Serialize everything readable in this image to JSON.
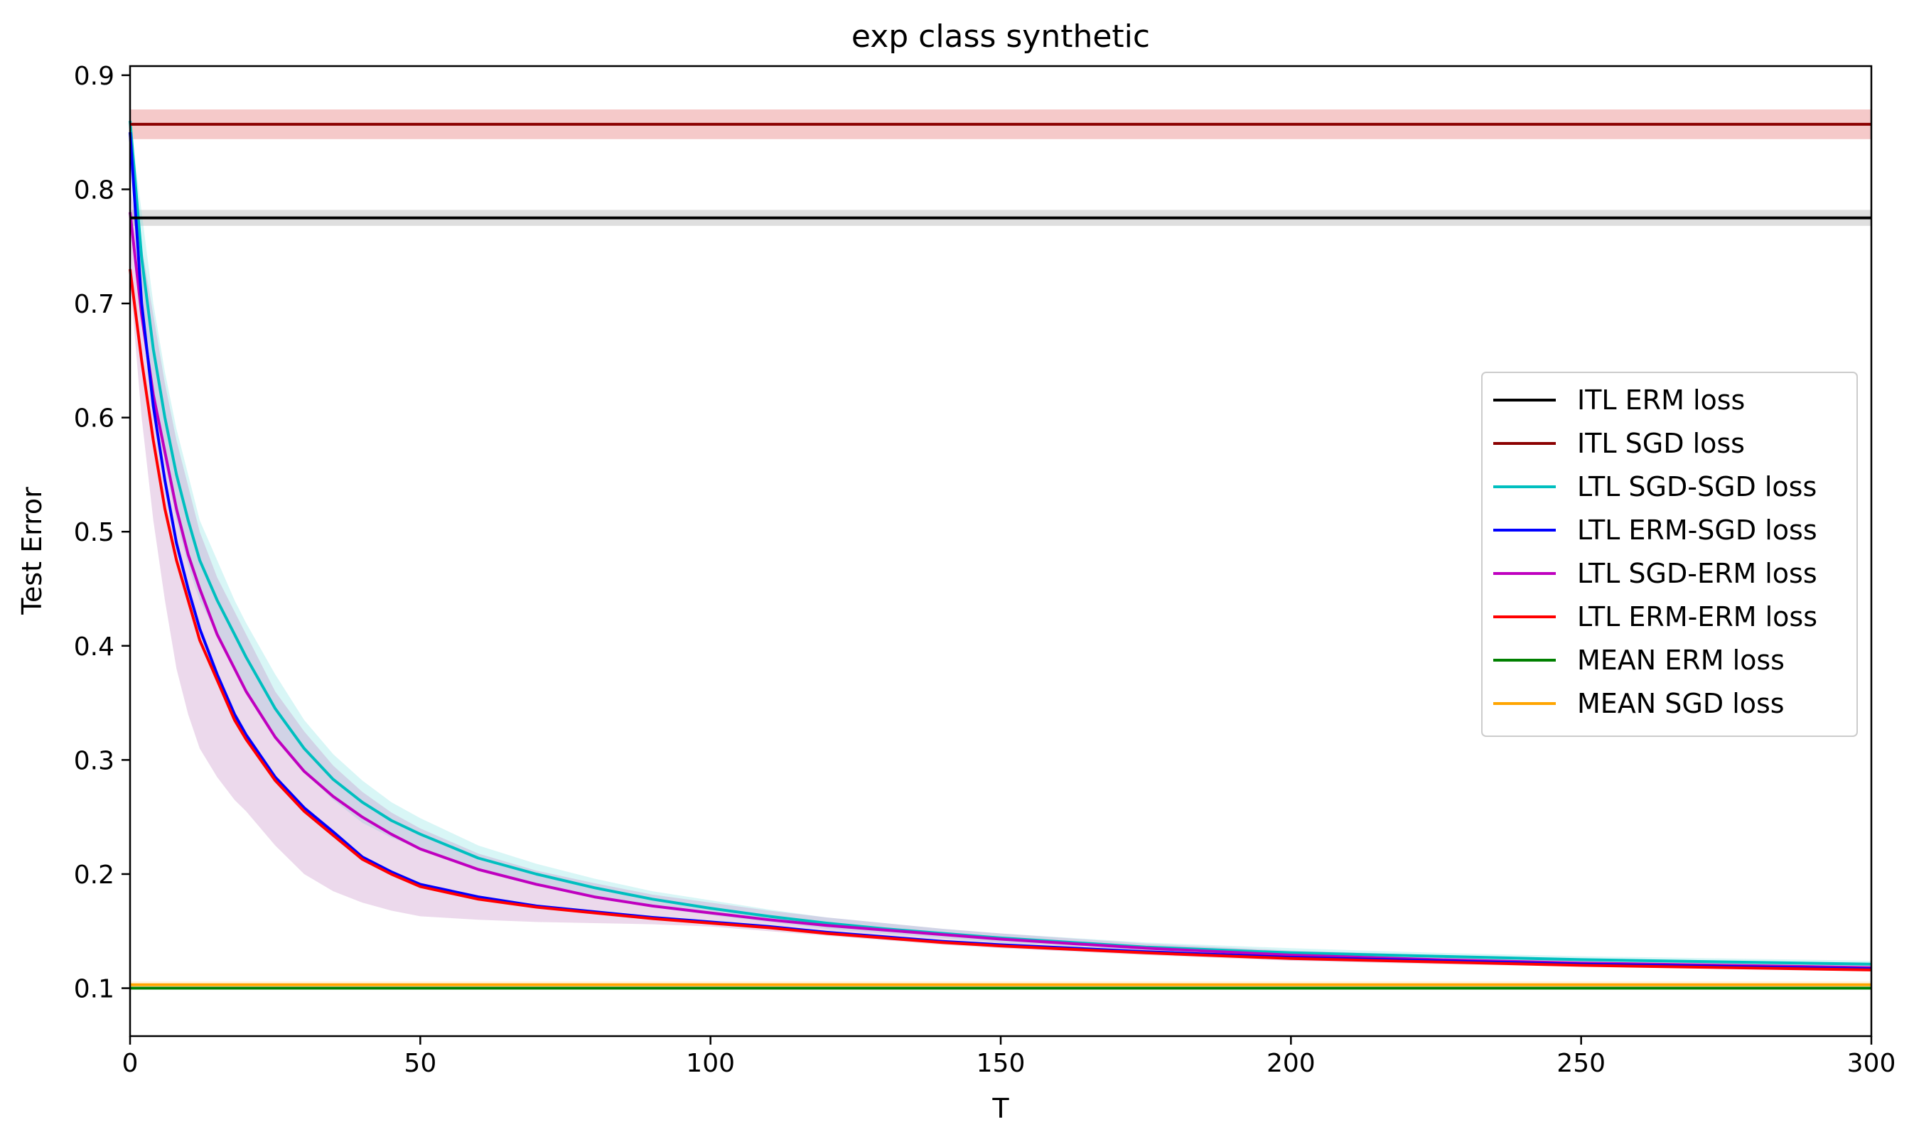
{
  "chart_data": {
    "type": "line",
    "title": "exp class synthetic",
    "xlabel": "T",
    "ylabel": "Test Error",
    "xlim": [
      0,
      300
    ],
    "ylim": [
      0.058,
      0.908
    ],
    "xticks": [
      0,
      50,
      100,
      150,
      200,
      250,
      300
    ],
    "yticks": [
      0.1,
      0.2,
      0.3,
      0.4,
      0.5,
      0.6,
      0.7,
      0.8,
      0.9
    ],
    "xtick_labels": [
      "0",
      "50",
      "100",
      "150",
      "200",
      "250",
      "300"
    ],
    "ytick_labels": [
      "0.1",
      "0.2",
      "0.3",
      "0.4",
      "0.5",
      "0.6",
      "0.7",
      "0.8",
      "0.9"
    ],
    "grid": false,
    "legend_position": "center-right",
    "x": [
      0,
      2,
      4,
      6,
      8,
      10,
      12,
      15,
      18,
      20,
      25,
      30,
      35,
      40,
      45,
      50,
      60,
      70,
      80,
      90,
      100,
      110,
      120,
      130,
      140,
      150,
      175,
      200,
      225,
      250,
      275,
      300
    ],
    "series": [
      {
        "name": "ITL ERM loss",
        "color": "#000000",
        "kind": "constant",
        "value": 0.775,
        "band": [
          0.768,
          0.782
        ],
        "band_color": "#808080"
      },
      {
        "name": "ITL SGD loss",
        "color": "#8b0000",
        "kind": "constant",
        "value": 0.857,
        "band": [
          0.844,
          0.87
        ],
        "band_color": "#d62728"
      },
      {
        "name": "LTL SGD-SGD loss",
        "color": "#00bfbf",
        "band_color": "#7fe0e0",
        "values": [
          0.86,
          0.74,
          0.66,
          0.6,
          0.55,
          0.51,
          0.475,
          0.44,
          0.41,
          0.39,
          0.345,
          0.31,
          0.283,
          0.263,
          0.247,
          0.235,
          0.214,
          0.2,
          0.188,
          0.178,
          0.17,
          0.163,
          0.157,
          0.152,
          0.148,
          0.144,
          0.136,
          0.131,
          0.128,
          0.125,
          0.123,
          0.121
        ],
        "band_lower": [
          0.84,
          0.7,
          0.62,
          0.56,
          0.51,
          0.47,
          0.44,
          0.41,
          0.38,
          0.36,
          0.32,
          0.29,
          0.265,
          0.245,
          0.232,
          0.222,
          0.204,
          0.191,
          0.18,
          0.171,
          0.164,
          0.158,
          0.152,
          0.148,
          0.144,
          0.14,
          0.133,
          0.128,
          0.125,
          0.123,
          0.121,
          0.119
        ],
        "band_upper": [
          0.86,
          0.78,
          0.7,
          0.64,
          0.59,
          0.55,
          0.51,
          0.475,
          0.44,
          0.42,
          0.375,
          0.335,
          0.305,
          0.282,
          0.263,
          0.249,
          0.225,
          0.209,
          0.196,
          0.185,
          0.177,
          0.169,
          0.162,
          0.157,
          0.152,
          0.148,
          0.14,
          0.135,
          0.131,
          0.128,
          0.126,
          0.124
        ]
      },
      {
        "name": "LTL ERM-SGD loss",
        "color": "#0000ff",
        "values": [
          0.85,
          0.7,
          0.61,
          0.545,
          0.49,
          0.45,
          0.415,
          0.375,
          0.34,
          0.322,
          0.285,
          0.258,
          0.237,
          0.215,
          0.202,
          0.191,
          0.18,
          0.172,
          0.167,
          0.162,
          0.158,
          0.154,
          0.149,
          0.145,
          0.141,
          0.138,
          0.132,
          0.127,
          0.124,
          0.121,
          0.119,
          0.117
        ]
      },
      {
        "name": "LTL SGD-ERM loss",
        "color": "#bf00bf",
        "band_color": "#c080c0",
        "values": [
          0.78,
          0.69,
          0.62,
          0.57,
          0.52,
          0.48,
          0.45,
          0.41,
          0.38,
          0.36,
          0.32,
          0.29,
          0.268,
          0.25,
          0.235,
          0.222,
          0.204,
          0.191,
          0.18,
          0.172,
          0.166,
          0.16,
          0.155,
          0.151,
          0.147,
          0.143,
          0.135,
          0.129,
          0.125,
          0.122,
          0.12,
          0.118
        ],
        "band_lower": [
          0.72,
          0.6,
          0.51,
          0.44,
          0.38,
          0.34,
          0.31,
          0.285,
          0.265,
          0.255,
          0.225,
          0.2,
          0.185,
          0.175,
          0.168,
          0.163,
          0.16,
          0.158,
          0.157,
          0.156,
          0.154,
          0.15,
          0.146,
          0.142,
          0.138,
          0.135,
          0.129,
          0.124,
          0.121,
          0.119,
          0.117,
          0.115
        ],
        "band_upper": [
          0.8,
          0.75,
          0.69,
          0.63,
          0.58,
          0.54,
          0.5,
          0.46,
          0.43,
          0.41,
          0.36,
          0.325,
          0.295,
          0.272,
          0.254,
          0.24,
          0.218,
          0.203,
          0.192,
          0.182,
          0.175,
          0.168,
          0.162,
          0.157,
          0.152,
          0.148,
          0.139,
          0.133,
          0.129,
          0.126,
          0.123,
          0.121
        ]
      },
      {
        "name": "LTL ERM-ERM loss",
        "color": "#ff0000",
        "values": [
          0.73,
          0.65,
          0.58,
          0.52,
          0.475,
          0.44,
          0.405,
          0.37,
          0.335,
          0.318,
          0.282,
          0.255,
          0.234,
          0.213,
          0.2,
          0.189,
          0.178,
          0.171,
          0.166,
          0.161,
          0.157,
          0.153,
          0.148,
          0.144,
          0.14,
          0.137,
          0.131,
          0.126,
          0.123,
          0.12,
          0.118,
          0.116
        ]
      },
      {
        "name": "MEAN ERM loss",
        "color": "#008000",
        "kind": "constant",
        "value": 0.1
      },
      {
        "name": "MEAN SGD loss",
        "color": "#ffa500",
        "kind": "constant",
        "value": 0.103,
        "band": [
          0.1,
          0.106
        ],
        "band_color": "#ffd27f"
      }
    ]
  }
}
